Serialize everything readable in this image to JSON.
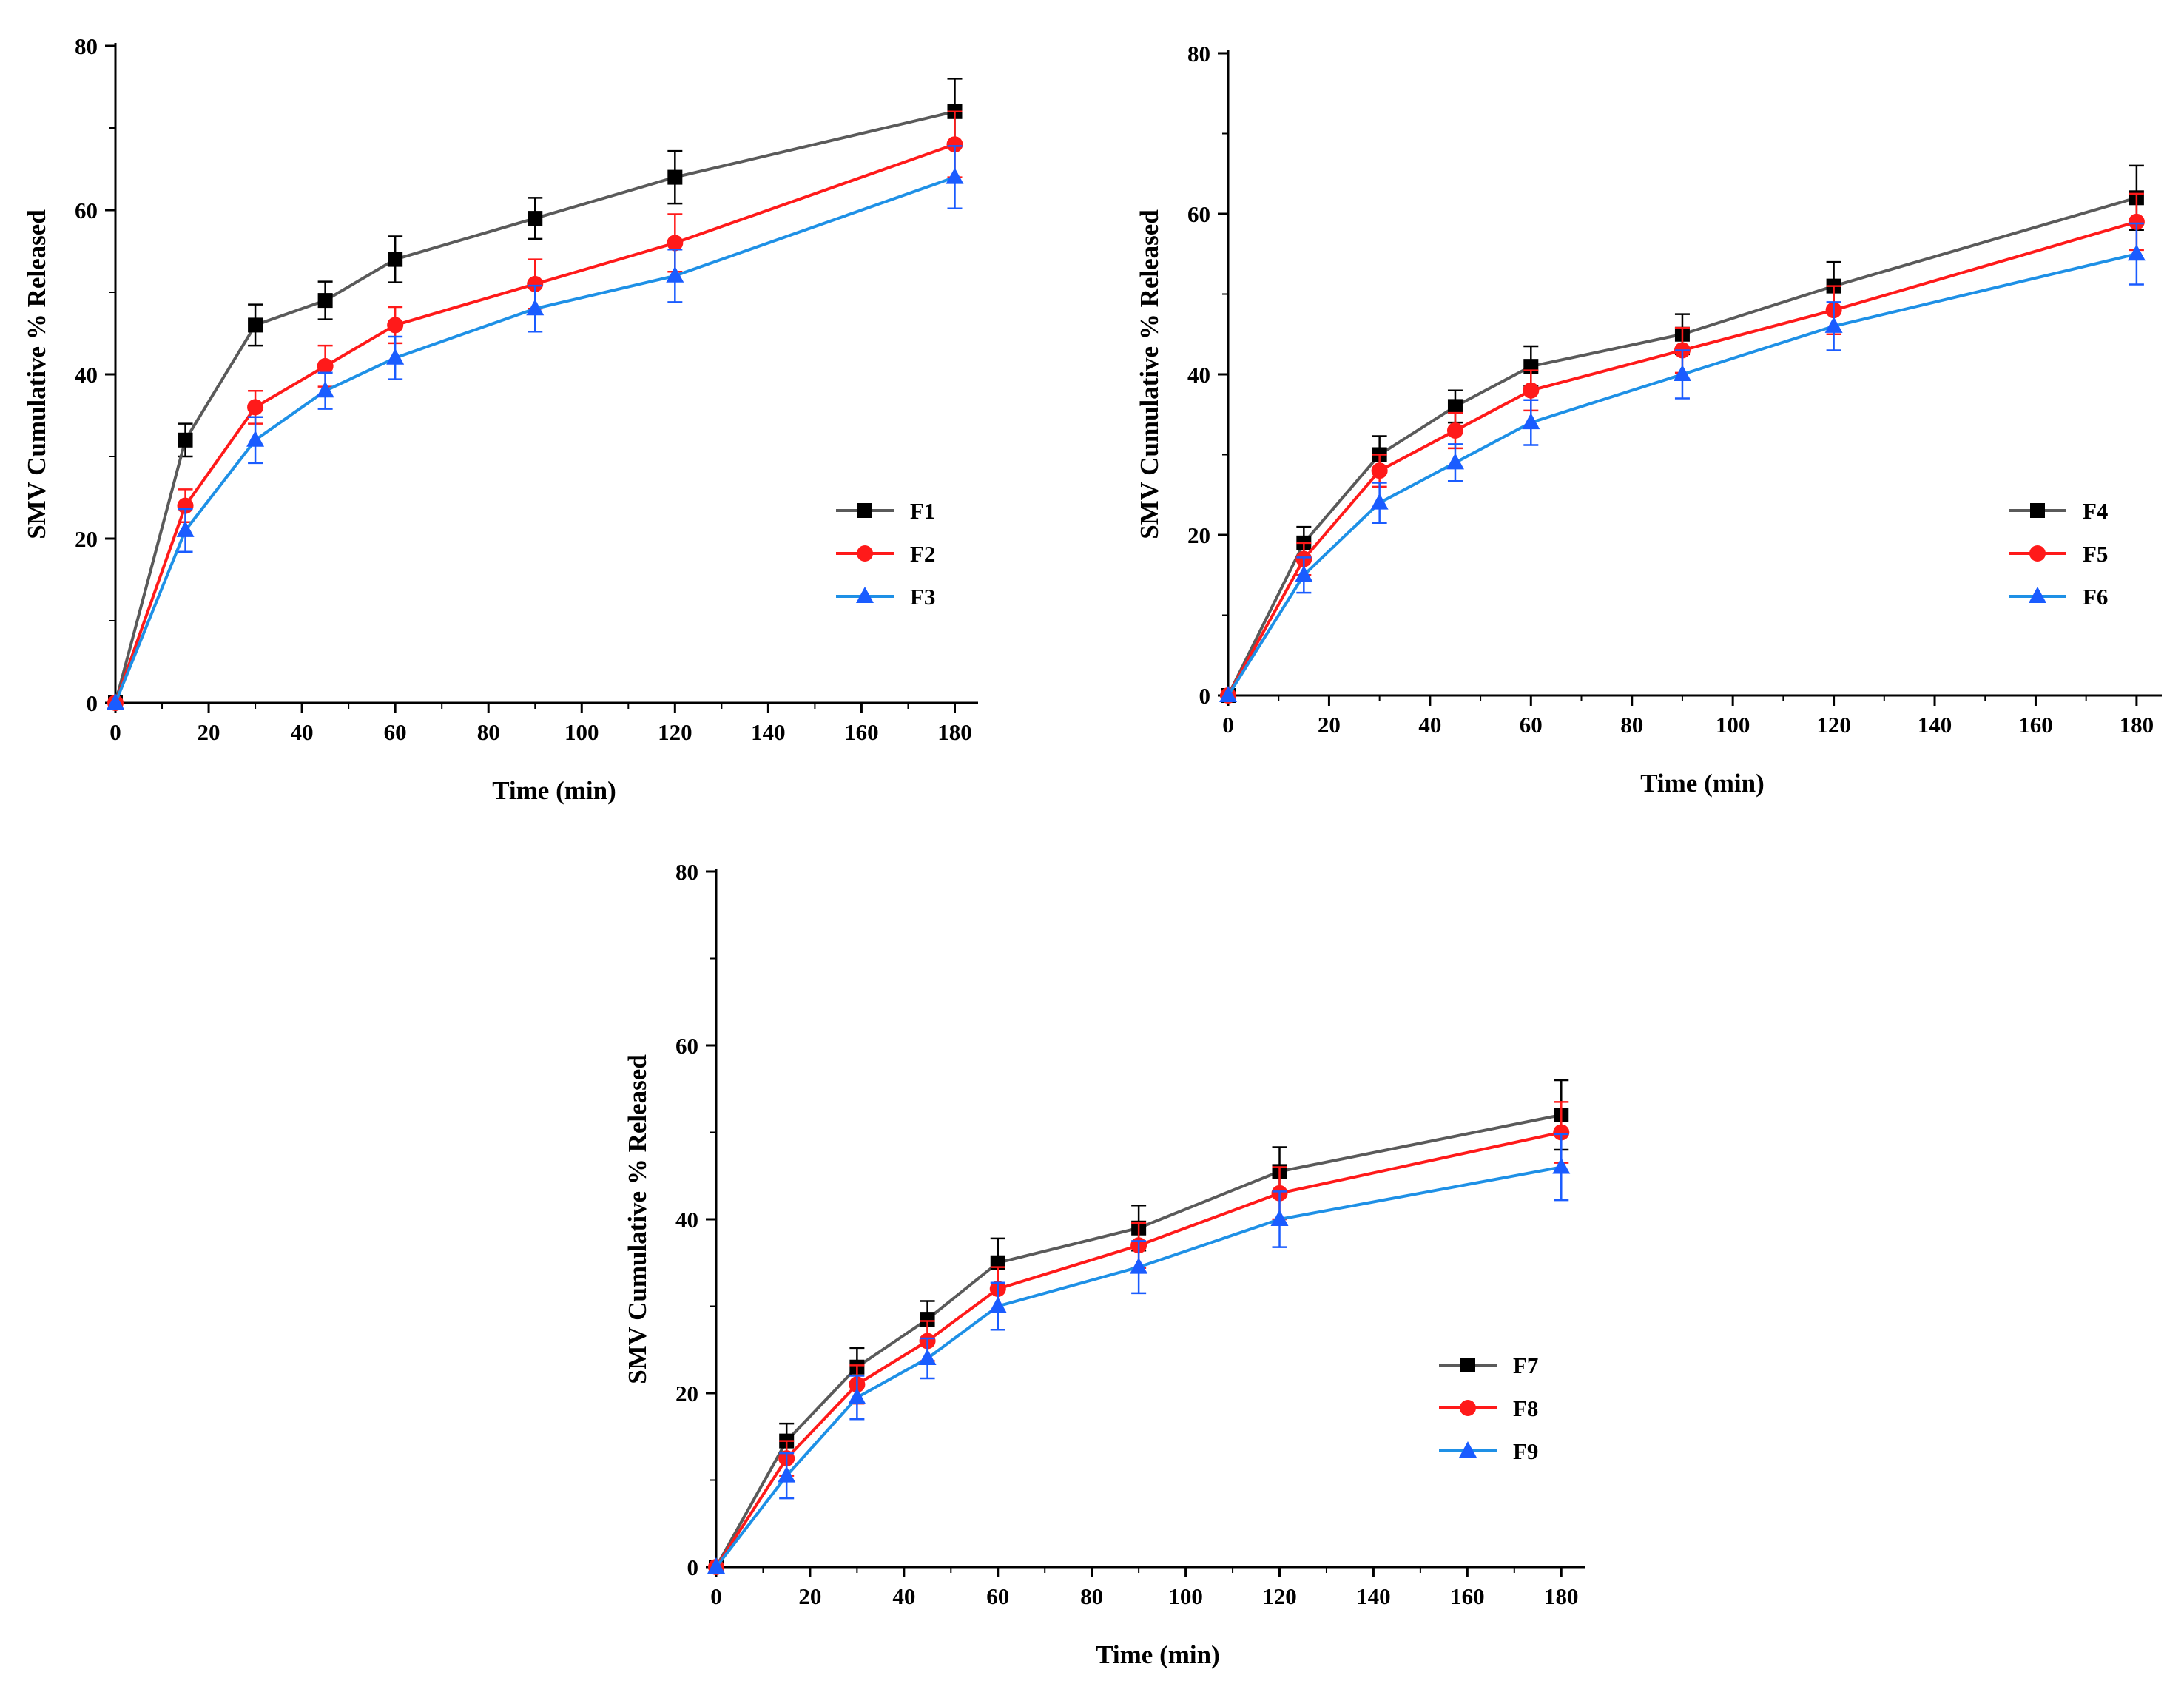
{
  "colors": {
    "F_black": "#000000",
    "line_black": "#5a5a5a",
    "F_red": "#ff1a1a",
    "F_blue": "#1a5cff",
    "line_blue": "#1e90e6"
  },
  "chart_data": [
    {
      "type": "line",
      "xlabel": "Time (min)",
      "ylabel": "SMV Cumulative % Released",
      "xlim": [
        0,
        185
      ],
      "ylim": [
        0,
        80
      ],
      "xticks": [
        "0",
        "20",
        "40",
        "60",
        "80",
        "100",
        "120",
        "140",
        "160",
        "180"
      ],
      "yticks": [
        "0",
        "20",
        "40",
        "60",
        "80"
      ],
      "legend_position": "right-middle",
      "x": [
        0,
        15,
        30,
        45,
        60,
        90,
        120,
        180
      ],
      "series": [
        {
          "name": "F1",
          "marker": "square",
          "values": [
            0,
            32,
            46,
            49,
            54,
            59,
            64,
            72
          ],
          "errors": [
            0,
            2,
            2.5,
            2.3,
            2.8,
            2.5,
            3.2,
            4
          ]
        },
        {
          "name": "F2",
          "marker": "circle",
          "values": [
            0,
            24,
            36,
            41,
            46,
            51,
            56,
            68
          ],
          "errors": [
            0,
            2,
            2,
            2.5,
            2.2,
            3,
            3.5,
            4
          ]
        },
        {
          "name": "F3",
          "marker": "triangle",
          "values": [
            0,
            21,
            32,
            38,
            42,
            48,
            52,
            64
          ],
          "errors": [
            0,
            2.6,
            2.8,
            2.2,
            2.6,
            2.8,
            3.2,
            3.8
          ]
        }
      ]
    },
    {
      "type": "line",
      "xlabel": "Time (min)",
      "ylabel": "SMV Cumulative % Released",
      "xlim": [
        0,
        185
      ],
      "ylim": [
        0,
        80
      ],
      "xticks": [
        "0",
        "20",
        "40",
        "60",
        "80",
        "100",
        "120",
        "140",
        "160",
        "180"
      ],
      "yticks": [
        "0",
        "20",
        "40",
        "60",
        "80"
      ],
      "legend_position": "right-middle",
      "x": [
        0,
        15,
        30,
        45,
        60,
        90,
        120,
        180
      ],
      "series": [
        {
          "name": "F4",
          "marker": "square",
          "values": [
            0,
            19,
            30,
            36,
            41,
            45,
            51,
            62
          ],
          "errors": [
            0,
            2,
            2.3,
            2,
            2.5,
            2.5,
            3,
            4
          ]
        },
        {
          "name": "F5",
          "marker": "circle",
          "values": [
            0,
            17,
            28,
            33,
            38,
            43,
            48,
            59
          ],
          "errors": [
            0,
            2,
            2,
            2.2,
            2.5,
            2.8,
            3,
            3.5
          ]
        },
        {
          "name": "F6",
          "marker": "triangle",
          "values": [
            0,
            15,
            24,
            29,
            34,
            40,
            46,
            55
          ],
          "errors": [
            0,
            2.2,
            2.5,
            2.3,
            2.8,
            3,
            3,
            3.8
          ]
        }
      ]
    },
    {
      "type": "line",
      "xlabel": "Time (min)",
      "ylabel": "SMV Cumulative % Released",
      "xlim": [
        0,
        185
      ],
      "ylim": [
        0,
        80
      ],
      "xticks": [
        "0",
        "20",
        "40",
        "60",
        "80",
        "100",
        "120",
        "140",
        "160",
        "180"
      ],
      "yticks": [
        "0",
        "20",
        "40",
        "60",
        "80"
      ],
      "legend_position": "right-lower",
      "x": [
        0,
        15,
        30,
        45,
        60,
        90,
        120,
        180
      ],
      "series": [
        {
          "name": "F7",
          "marker": "square",
          "values": [
            0,
            14.5,
            23,
            28.5,
            35,
            39,
            45.5,
            52
          ],
          "errors": [
            0,
            2,
            2.2,
            2.1,
            2.8,
            2.6,
            2.8,
            4
          ]
        },
        {
          "name": "F8",
          "marker": "circle",
          "values": [
            0,
            12.5,
            21,
            26,
            32,
            37,
            43,
            50
          ],
          "errors": [
            0,
            2,
            2.2,
            2.3,
            2.5,
            2.6,
            3,
            3.5
          ]
        },
        {
          "name": "F9",
          "marker": "triangle",
          "values": [
            0,
            10.5,
            19.5,
            24,
            30,
            34.5,
            40,
            46
          ],
          "errors": [
            0,
            2.6,
            2.5,
            2.3,
            2.7,
            3,
            3.2,
            3.8
          ]
        }
      ]
    }
  ]
}
